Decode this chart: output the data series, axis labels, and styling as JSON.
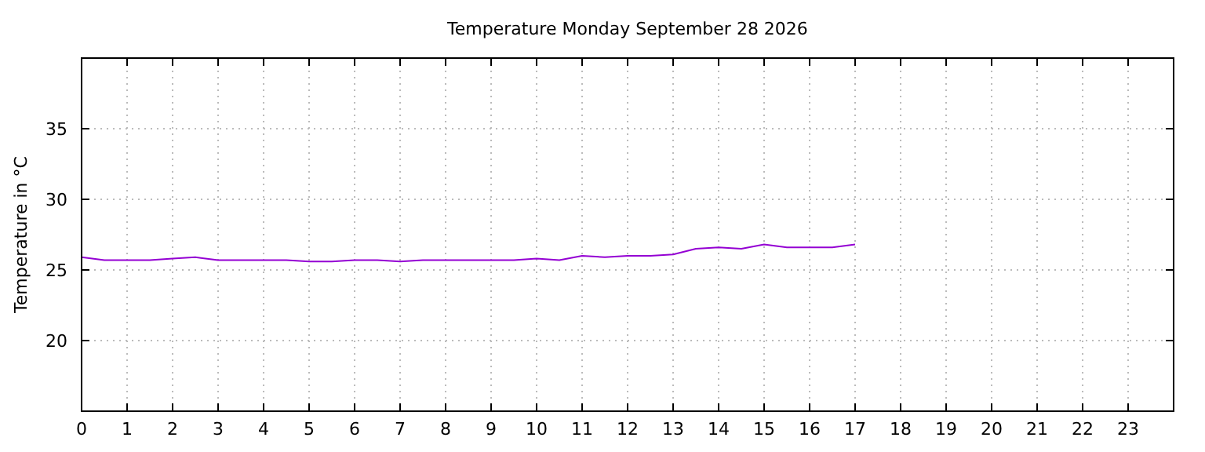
{
  "chart_data": {
    "type": "line",
    "title": "Temperature Monday September 28 2026",
    "ylabel": "Temperature in °C",
    "x": [
      0,
      0.5,
      1,
      1.5,
      2,
      2.5,
      3,
      3.5,
      4,
      4.5,
      5,
      5.5,
      6,
      6.5,
      7,
      7.5,
      8,
      8.5,
      9,
      9.5,
      10,
      10.5,
      11,
      11.5,
      12,
      12.5,
      13,
      13.5,
      14,
      14.5,
      15,
      15.5,
      16,
      16.5,
      17
    ],
    "series": [
      {
        "color": "#9400d3",
        "values": [
          25.9,
          25.7,
          25.7,
          25.7,
          25.8,
          25.9,
          25.7,
          25.7,
          25.7,
          25.7,
          25.6,
          25.6,
          25.7,
          25.7,
          25.6,
          25.7,
          25.7,
          25.7,
          25.7,
          25.7,
          25.8,
          25.7,
          26.0,
          25.9,
          26.0,
          26.0,
          26.1,
          26.5,
          26.6,
          26.5,
          26.8,
          26.6,
          26.6,
          26.6,
          26.8
        ]
      }
    ],
    "xlim": [
      0,
      24
    ],
    "xticks": [
      0,
      1,
      2,
      3,
      4,
      5,
      6,
      7,
      8,
      9,
      10,
      11,
      12,
      13,
      14,
      15,
      16,
      17,
      18,
      19,
      20,
      21,
      22,
      23
    ],
    "ylim": [
      15,
      40
    ],
    "yticks": [
      20,
      25,
      30,
      35
    ],
    "grid": true
  }
}
